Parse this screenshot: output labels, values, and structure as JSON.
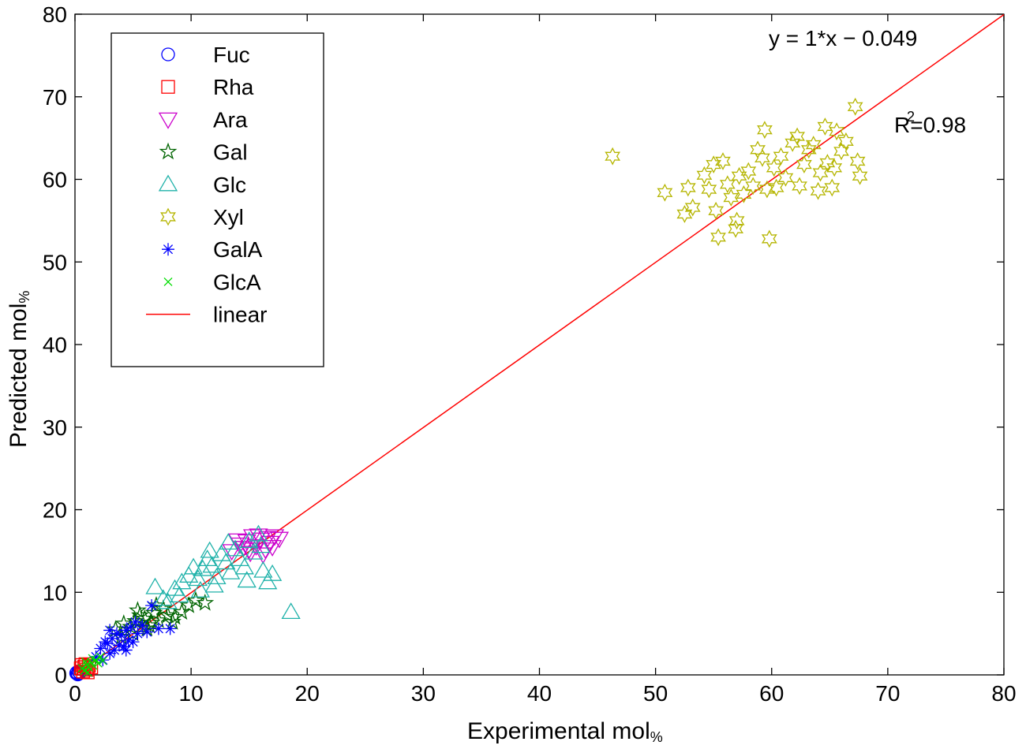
{
  "chart_data": {
    "type": "scatter",
    "title": "",
    "xlabel": "Experimental mol",
    "xlabel_sub": "%",
    "ylabel": "Predicted mol",
    "ylabel_sub": "%",
    "xlim": [
      0,
      80
    ],
    "ylim": [
      0,
      80
    ],
    "xticks": [
      "0",
      "10",
      "20",
      "30",
      "40",
      "50",
      "60",
      "70",
      "80"
    ],
    "yticks": [
      "0",
      "10",
      "20",
      "30",
      "40",
      "50",
      "60",
      "70",
      "80"
    ],
    "grid": false,
    "legend_position": "top-left",
    "equation": "y = 1*x − 0.049",
    "r2_prefix": "R",
    "r2_sup": "2",
    "r2_value": "=0.98",
    "series": [
      {
        "name": "Fuc",
        "marker": "circle",
        "color": "#0000ff",
        "points": [
          [
            0.1,
            0.2
          ],
          [
            0.2,
            0.1
          ],
          [
            0.3,
            0.4
          ],
          [
            0.15,
            0.3
          ],
          [
            0.4,
            0.2
          ],
          [
            0.25,
            0.05
          ]
        ]
      },
      {
        "name": "Rha",
        "marker": "square",
        "color": "#ff0000",
        "points": [
          [
            0.5,
            0.8
          ],
          [
            0.8,
            1.0
          ],
          [
            1.0,
            0.6
          ],
          [
            1.2,
            1.1
          ],
          [
            0.7,
            0.4
          ],
          [
            1.4,
            0.9
          ],
          [
            0.9,
            1.3
          ],
          [
            1.1,
            0.3
          ],
          [
            0.6,
            1.2
          ]
        ]
      },
      {
        "name": "Ara",
        "marker": "triangle-down",
        "color": "#cc00cc",
        "points": [
          [
            13.5,
            15.0
          ],
          [
            14.2,
            15.8
          ],
          [
            14.8,
            16.2
          ],
          [
            15.1,
            14.8
          ],
          [
            15.6,
            15.6
          ],
          [
            16.0,
            16.4
          ],
          [
            16.4,
            15.2
          ],
          [
            16.8,
            16.0
          ],
          [
            17.2,
            16.8
          ],
          [
            17.6,
            16.5
          ],
          [
            15.3,
            16.8
          ],
          [
            14.5,
            15.4
          ],
          [
            16.2,
            14.6
          ],
          [
            17.0,
            15.5
          ],
          [
            15.8,
            16.9
          ],
          [
            14.0,
            16.3
          ],
          [
            16.6,
            16.6
          ],
          [
            15.0,
            15.2
          ]
        ]
      },
      {
        "name": "Gal",
        "marker": "star5",
        "color": "#006400",
        "points": [
          [
            3.5,
            5.5
          ],
          [
            4.2,
            6.2
          ],
          [
            4.8,
            5.8
          ],
          [
            5.2,
            6.5
          ],
          [
            5.6,
            7.2
          ],
          [
            6.0,
            6.8
          ],
          [
            6.4,
            6.0
          ],
          [
            6.8,
            7.5
          ],
          [
            7.2,
            6.6
          ],
          [
            7.6,
            8.0
          ],
          [
            8.0,
            7.2
          ],
          [
            8.6,
            7.0
          ],
          [
            9.2,
            7.6
          ],
          [
            9.8,
            8.4
          ],
          [
            10.4,
            9.0
          ],
          [
            11.2,
            8.7
          ],
          [
            4.0,
            4.6
          ],
          [
            5.0,
            5.0
          ],
          [
            6.2,
            5.6
          ],
          [
            7.0,
            8.4
          ],
          [
            8.4,
            6.4
          ],
          [
            5.4,
            7.8
          ],
          [
            6.6,
            6.3
          ]
        ]
      },
      {
        "name": "Glc",
        "marker": "triangle-up",
        "color": "#20b2aa",
        "points": [
          [
            6.9,
            10.6
          ],
          [
            7.6,
            9.2
          ],
          [
            8.0,
            8.8
          ],
          [
            8.6,
            10.4
          ],
          [
            9.2,
            11.2
          ],
          [
            9.8,
            12.0
          ],
          [
            10.2,
            13.0
          ],
          [
            10.6,
            11.6
          ],
          [
            11.0,
            12.8
          ],
          [
            11.4,
            14.0
          ],
          [
            11.8,
            13.2
          ],
          [
            12.2,
            11.8
          ],
          [
            12.6,
            14.6
          ],
          [
            13.0,
            13.6
          ],
          [
            13.4,
            12.4
          ],
          [
            13.8,
            15.2
          ],
          [
            14.2,
            14.0
          ],
          [
            14.6,
            13.0
          ],
          [
            15.0,
            16.2
          ],
          [
            15.4,
            14.8
          ],
          [
            15.8,
            17.0
          ],
          [
            16.2,
            12.6
          ],
          [
            16.6,
            11.2
          ],
          [
            17.0,
            12.2
          ],
          [
            16.0,
            15.6
          ],
          [
            14.8,
            11.4
          ],
          [
            12.0,
            10.8
          ],
          [
            10.8,
            10.2
          ],
          [
            11.6,
            15.0
          ],
          [
            18.6,
            7.6
          ],
          [
            9.0,
            9.6
          ],
          [
            13.2,
            16.0
          ]
        ]
      },
      {
        "name": "Xyl",
        "marker": "star6",
        "color": "#b5b500",
        "points": [
          [
            46.3,
            62.8
          ],
          [
            50.8,
            58.4
          ],
          [
            52.5,
            55.8
          ],
          [
            52.8,
            59.0
          ],
          [
            53.2,
            56.6
          ],
          [
            54.2,
            60.5
          ],
          [
            54.6,
            58.8
          ],
          [
            55.0,
            61.8
          ],
          [
            55.2,
            56.2
          ],
          [
            55.4,
            53.0
          ],
          [
            55.8,
            62.2
          ],
          [
            56.2,
            59.4
          ],
          [
            56.5,
            57.8
          ],
          [
            56.9,
            54.0
          ],
          [
            57.2,
            60.4
          ],
          [
            57.6,
            58.2
          ],
          [
            58.0,
            61.0
          ],
          [
            58.4,
            59.2
          ],
          [
            58.8,
            63.6
          ],
          [
            59.2,
            62.6
          ],
          [
            59.4,
            66.0
          ],
          [
            59.6,
            58.8
          ],
          [
            59.8,
            52.8
          ],
          [
            60.2,
            61.4
          ],
          [
            60.4,
            59.0
          ],
          [
            60.8,
            62.8
          ],
          [
            61.2,
            60.2
          ],
          [
            61.8,
            64.4
          ],
          [
            62.2,
            65.2
          ],
          [
            62.4,
            59.2
          ],
          [
            62.8,
            61.8
          ],
          [
            63.2,
            63.6
          ],
          [
            63.6,
            64.2
          ],
          [
            64.2,
            60.8
          ],
          [
            64.6,
            66.4
          ],
          [
            64.8,
            62.0
          ],
          [
            65.2,
            59.0
          ],
          [
            65.6,
            65.8
          ],
          [
            66.0,
            63.4
          ],
          [
            66.4,
            64.6
          ],
          [
            67.2,
            68.8
          ],
          [
            67.4,
            62.2
          ],
          [
            67.6,
            60.4
          ],
          [
            65.4,
            61.4
          ],
          [
            57.0,
            55.0
          ],
          [
            64.0,
            58.6
          ]
        ]
      },
      {
        "name": "GalA",
        "marker": "asterisk",
        "color": "#0000ff",
        "points": [
          [
            1.8,
            2.2
          ],
          [
            2.2,
            3.2
          ],
          [
            2.4,
            1.8
          ],
          [
            2.8,
            3.8
          ],
          [
            3.0,
            2.6
          ],
          [
            3.2,
            4.4
          ],
          [
            3.4,
            3.0
          ],
          [
            3.6,
            5.0
          ],
          [
            3.8,
            3.6
          ],
          [
            4.0,
            4.8
          ],
          [
            4.2,
            3.4
          ],
          [
            4.4,
            5.4
          ],
          [
            4.6,
            4.2
          ],
          [
            4.8,
            5.8
          ],
          [
            5.0,
            4.0
          ],
          [
            5.4,
            5.0
          ],
          [
            5.8,
            6.0
          ],
          [
            6.2,
            5.2
          ],
          [
            6.6,
            8.4
          ],
          [
            7.2,
            5.6
          ],
          [
            8.2,
            5.6
          ],
          [
            2.6,
            4.0
          ],
          [
            3.0,
            5.4
          ],
          [
            4.4,
            3.0
          ],
          [
            5.2,
            6.4
          ]
        ]
      },
      {
        "name": "GlcA",
        "marker": "cross",
        "color": "#00dd00",
        "points": [
          [
            0.6,
            0.8
          ],
          [
            0.8,
            0.5
          ],
          [
            1.0,
            1.2
          ],
          [
            1.2,
            0.9
          ],
          [
            1.4,
            1.5
          ],
          [
            1.6,
            1.1
          ],
          [
            1.8,
            1.8
          ],
          [
            2.0,
            1.4
          ],
          [
            2.2,
            2.2
          ],
          [
            2.4,
            1.7
          ],
          [
            1.1,
            0.3
          ],
          [
            1.5,
            2.0
          ],
          [
            0.9,
            1.6
          ]
        ]
      },
      {
        "name": "linear",
        "marker": "line",
        "color": "#ff0000",
        "slope": 1,
        "intercept": -0.049,
        "segments": [
          [
            0,
            18
          ],
          [
            18,
            80
          ]
        ]
      }
    ]
  }
}
